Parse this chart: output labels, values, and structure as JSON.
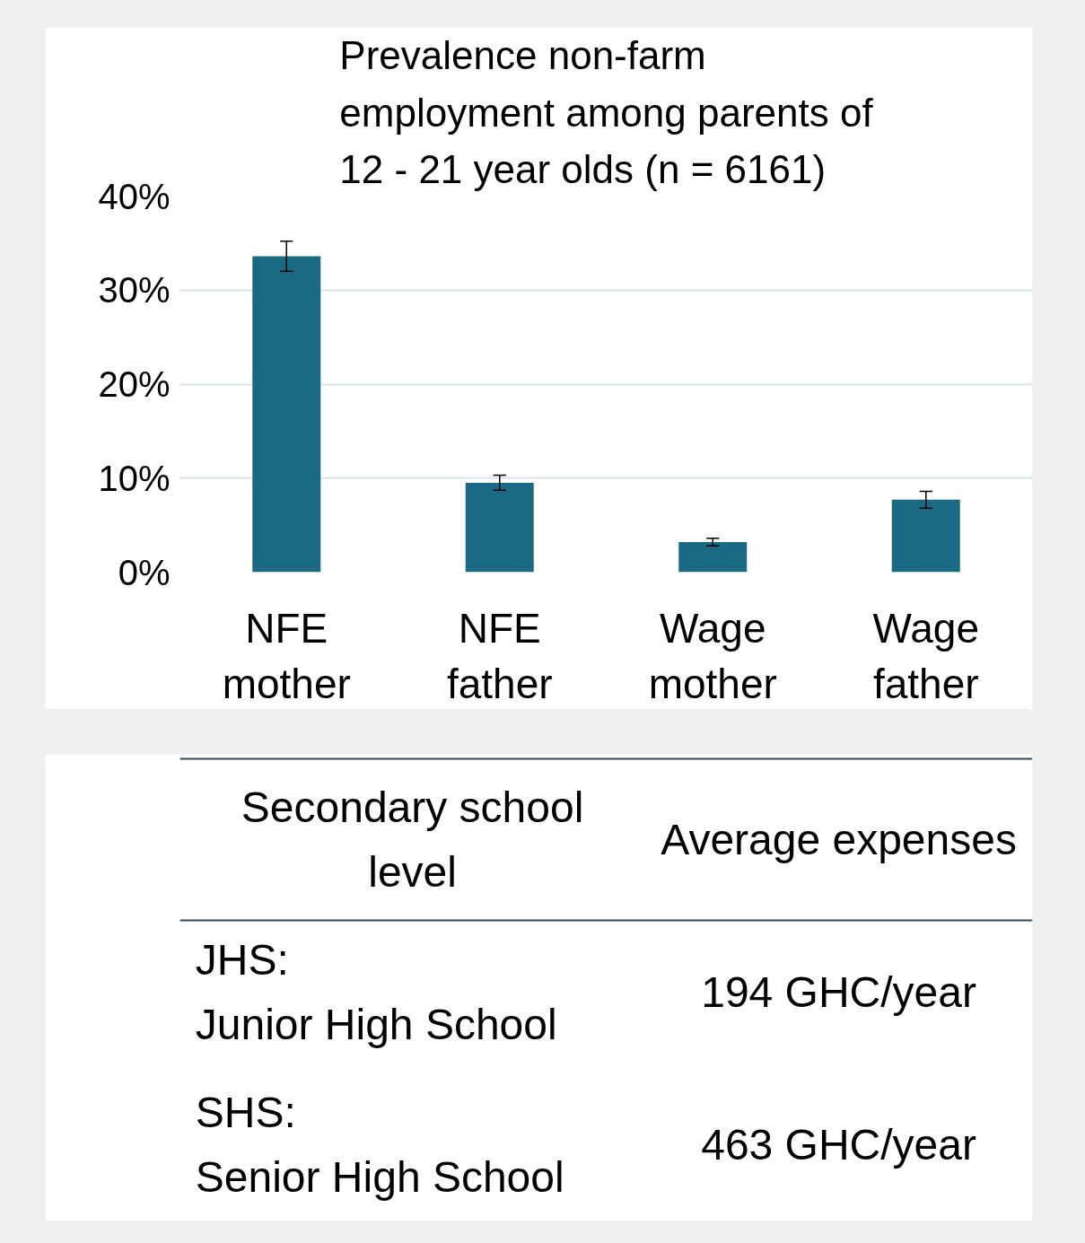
{
  "chart_data": [
    {
      "type": "bar",
      "title": "Prevalence non-farm employment among parents of 12 - 21 year olds (n = 6161)",
      "categories": [
        "NFE mother",
        "NFE father",
        "Wage mother",
        "Wage father"
      ],
      "values": [
        33.6,
        9.5,
        3.2,
        7.7
      ],
      "errors": [
        1.6,
        0.8,
        0.4,
        0.9
      ],
      "color": "#1a6a85",
      "ylim": [
        0,
        40
      ],
      "yticks": [
        {
          "value": 0,
          "label": "0%"
        },
        {
          "value": 10,
          "label": "10%"
        },
        {
          "value": 20,
          "label": "20%"
        },
        {
          "value": 30,
          "label": "30%"
        },
        {
          "value": 40,
          "label": "40%"
        }
      ],
      "grid": "y"
    },
    {
      "type": "other",
      "annotations": [
        "Secondary school level",
        "Average expenses",
        "JHS:\nJunior High School",
        "194 GHC/year",
        "SHS:\nSenior High School",
        "463 GHC/year"
      ]
    }
  ]
}
